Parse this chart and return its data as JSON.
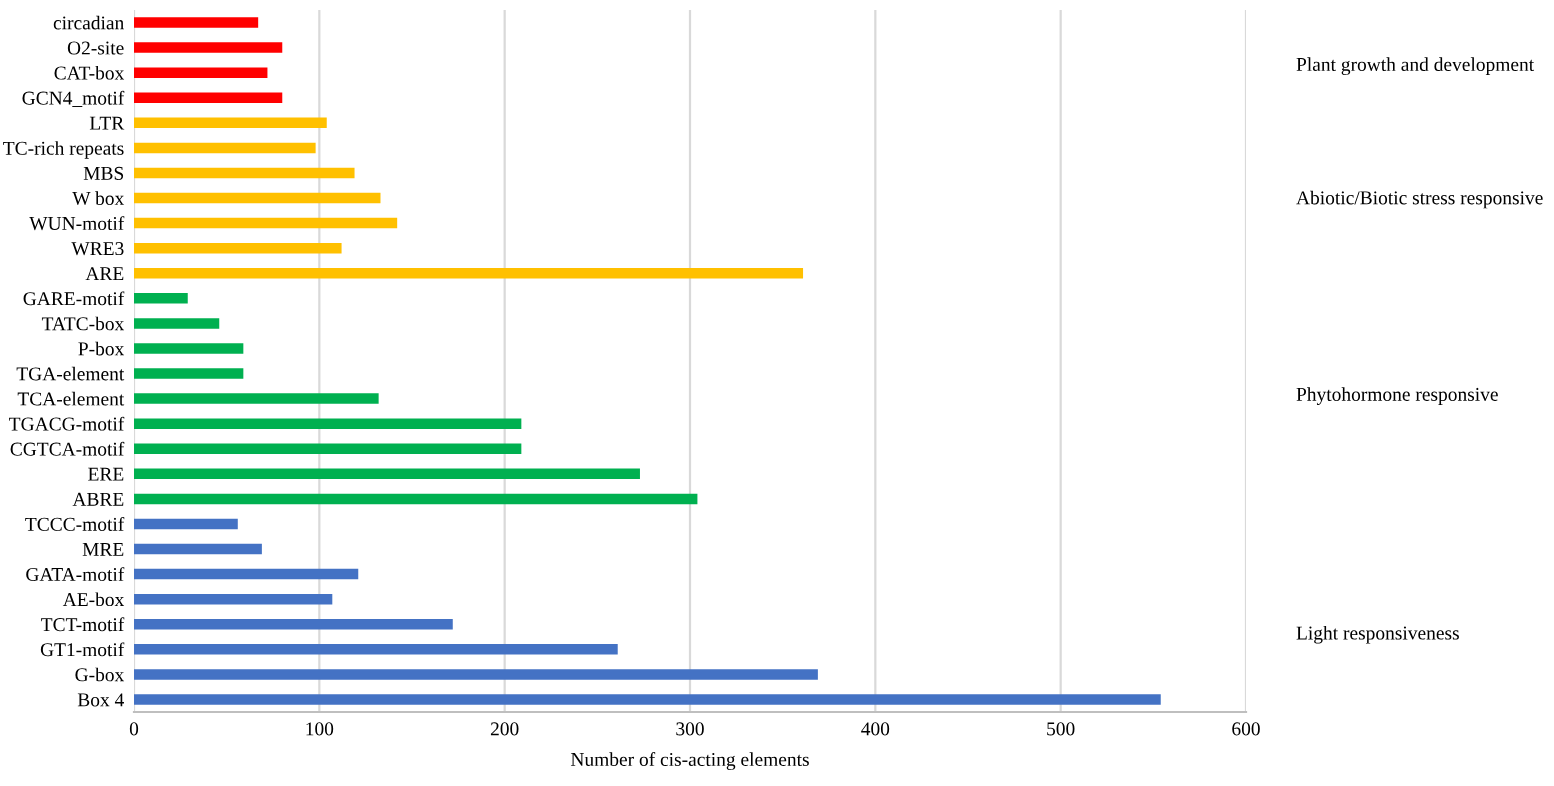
{
  "chart_data": {
    "type": "bar",
    "orientation": "horizontal",
    "xlabel": "Number of cis-acting elements",
    "categories": [
      "circadian",
      "O2-site",
      "CAT-box",
      "GCN4_motif",
      "LTR",
      "TC-rich repeats",
      "MBS",
      "W box",
      "WUN-motif",
      "WRE3",
      "ARE",
      "GARE-motif",
      "TATC-box",
      "P-box",
      "TGA-element",
      "TCA-element",
      "TGACG-motif",
      "CGTCA-motif",
      "ERE",
      "ABRE",
      "TCCC-motif",
      "MRE",
      "GATA-motif",
      "AE-box",
      "TCT-motif",
      "GT1-motif",
      "G-box",
      "Box 4"
    ],
    "values": [
      67,
      80,
      72,
      80,
      104,
      98,
      119,
      133,
      142,
      112,
      361,
      29,
      46,
      59,
      59,
      132,
      209,
      209,
      273,
      304,
      56,
      69,
      121,
      107,
      172,
      261,
      369,
      554
    ],
    "colors": [
      "#ff0000",
      "#ff0000",
      "#ff0000",
      "#ff0000",
      "#ffc000",
      "#ffc000",
      "#ffc000",
      "#ffc000",
      "#ffc000",
      "#ffc000",
      "#ffc000",
      "#00b050",
      "#00b050",
      "#00b050",
      "#00b050",
      "#00b050",
      "#00b050",
      "#00b050",
      "#00b050",
      "#00b050",
      "#4472c4",
      "#4472c4",
      "#4472c4",
      "#4472c4",
      "#4472c4",
      "#4472c4",
      "#4472c4",
      "#4472c4"
    ],
    "xlim": [
      0,
      600
    ],
    "xticks": [
      0,
      100,
      200,
      300,
      400,
      500,
      600
    ],
    "grid": "x",
    "annotations": [
      "Plant growth and development",
      "Abiotic/Biotic stress responsive",
      "Phytohormone responsive",
      "Light responsiveness"
    ]
  }
}
